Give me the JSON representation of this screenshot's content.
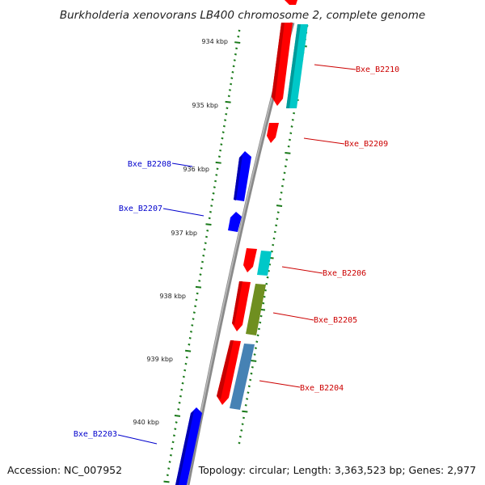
{
  "title": "Burkholderia xenovorans LB400 chromosome 2, complete genome",
  "footer": {
    "accession": "Accession: NC_007952",
    "summary": "Topology: circular; Length: 3,363,523 bp; Genes: 2,977"
  },
  "colors": {
    "forward_cds": "#ff0000",
    "reverse_cds": "#0000ff",
    "rrna_like": "#00c8c8",
    "misc_feature": "#6f8f20",
    "steelblue_feature": "#4682b4",
    "forward_label": "#cc0000",
    "reverse_label": "#0000cc",
    "tick": "#1a7a1a",
    "backbone": "#8a8a8a"
  },
  "tick_labels": [
    {
      "id": "934",
      "text": "934 kbp"
    },
    {
      "id": "935",
      "text": "935 kbp"
    },
    {
      "id": "936",
      "text": "936 kbp"
    },
    {
      "id": "937",
      "text": "937 kbp"
    },
    {
      "id": "938",
      "text": "938 kbp"
    },
    {
      "id": "939",
      "text": "939 kbp"
    },
    {
      "id": "940",
      "text": "940 kbp"
    }
  ],
  "genes": [
    {
      "id": "B2210",
      "label": "Bxe_B2210",
      "strand": "+"
    },
    {
      "id": "B2209",
      "label": "Bxe_B2209",
      "strand": "+"
    },
    {
      "id": "B2208",
      "label": "Bxe_B2208",
      "strand": "-"
    },
    {
      "id": "B2207",
      "label": "Bxe_B2207",
      "strand": "-"
    },
    {
      "id": "B2206",
      "label": "Bxe_B2206",
      "strand": "+"
    },
    {
      "id": "B2205",
      "label": "Bxe_B2205",
      "strand": "+"
    },
    {
      "id": "B2204",
      "label": "Bxe_B2204",
      "strand": "+"
    },
    {
      "id": "B2203",
      "label": "Bxe_B2203",
      "strand": "-"
    }
  ]
}
